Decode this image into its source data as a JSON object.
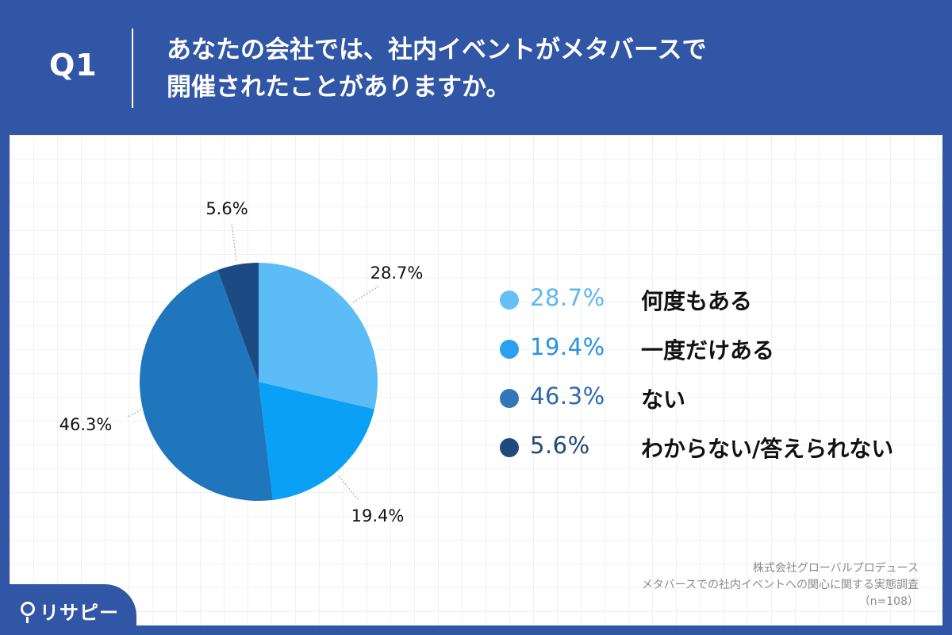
{
  "header": {
    "q_label": "Q1",
    "question_line1": "あなたの会社では、社内イベントがメタバースで",
    "question_line2": "開催されたことがありますか。"
  },
  "chart_data": {
    "type": "pie",
    "title": "あなたの会社では、社内イベントがメタバースで開催されたことがありますか。",
    "slices": [
      {
        "label": "何度もある",
        "value": 28.7,
        "value_label": "28.7%",
        "color": "#5bbcf8"
      },
      {
        "label": "一度だけある",
        "value": 19.4,
        "value_label": "19.4%",
        "color": "#0aa0f5"
      },
      {
        "label": "ない",
        "value": 46.3,
        "value_label": "46.3%",
        "color": "#1f76bc"
      },
      {
        "label": "わからない/答えられない",
        "value": 5.6,
        "value_label": "5.6%",
        "color": "#1b4b82"
      }
    ]
  },
  "legend": [
    {
      "pct": "28.7%",
      "text": "何度もある",
      "dot_color": "#66c0f5",
      "pct_color": "#5cb8ef"
    },
    {
      "pct": "19.4%",
      "text": "一度だけある",
      "dot_color": "#2b9ff0",
      "pct_color": "#2a92e3"
    },
    {
      "pct": "46.3%",
      "text": "ない",
      "dot_color": "#3476b8",
      "pct_color": "#2b6aa8"
    },
    {
      "pct": "5.6%",
      "text": "わからない/答えられない",
      "dot_color": "#1f4a7c",
      "pct_color": "#1f4a7c"
    }
  ],
  "source": {
    "line1": "株式会社グローバルプロデュース",
    "line2": "メタバースでの社内イベントへの関心に関する実態調査",
    "line3": "（n=108）"
  },
  "brand": {
    "logo_text": "リサピー",
    "background": "#3156a6"
  }
}
